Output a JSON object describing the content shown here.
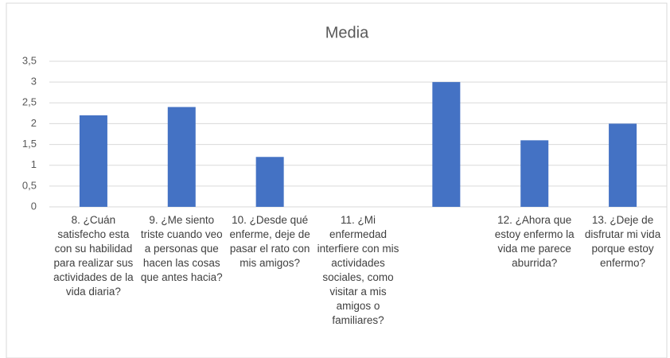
{
  "chart_data": {
    "type": "bar",
    "title": "Media",
    "categories": [
      "8. ¿Cuán satisfecho esta con su habilidad para realizar sus actividades de la vida diaria?",
      "9. ¿Me siento triste cuando veo a personas que hacen las cosas que antes hacia?",
      "10. ¿Desde qué enferme, deje de pasar el rato con mis amigos?",
      "11. ¿Mi enfermedad interfiere con mis actividades sociales, como visitar a mis amigos o familiares?",
      null,
      "12. ¿Ahora que estoy enfermo la vida me parece aburrida?",
      "13. ¿Deje de disfrutar mi vida porque estoy enfermo?"
    ],
    "values": [
      2.2,
      2.4,
      1.2,
      0,
      3,
      1.6,
      2
    ],
    "color": "#4472c4",
    "ylim": [
      0,
      3.5
    ],
    "yticks": [
      0,
      {
        "value": 0.5,
        "label": "0,5"
      },
      1,
      {
        "value": 1.5,
        "label": "1,5"
      },
      2,
      {
        "value": 2.5,
        "label": "2,5"
      },
      3,
      {
        "value": 3.5,
        "label": "3,5"
      }
    ],
    "grid": true
  }
}
